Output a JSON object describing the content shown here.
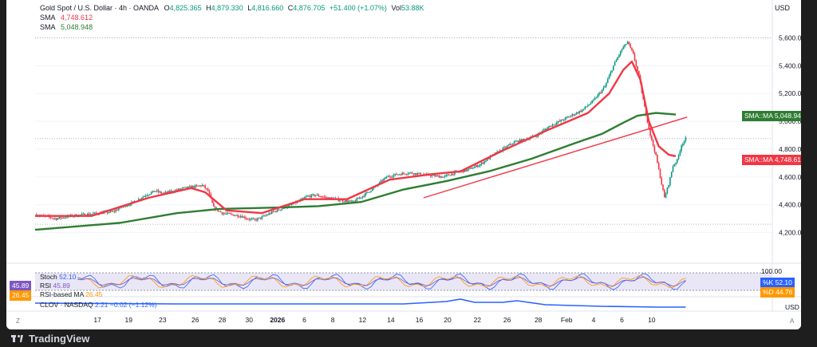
{
  "header": {
    "symbol": "Gold Spot / U.S. Dollar · 4h · OANDA",
    "o_label": "O",
    "o": "4,825.365",
    "h_label": "H",
    "h": "4,879.330",
    "l_label": "L",
    "l": "4,816.660",
    "c_label": "C",
    "c": "4,876.705",
    "change": "+51.400 (+1.07%)",
    "vol_label": "Vol",
    "vol": "53.88K",
    "sma1_label": "SMA",
    "sma1_value": "4,748.612",
    "sma2_label": "SMA",
    "sma2_value": "5,048.948",
    "currency": "USD"
  },
  "price_tags": {
    "sma_slow": {
      "label": "SMA::MA",
      "value": "5,048.948"
    },
    "sma_fast": {
      "label": "SMA::MA",
      "value": "4,748.612"
    }
  },
  "stoch_pane": {
    "title": "Stoch",
    "value": "52.10",
    "rsi_label": "RSI",
    "rsi_value": "45.89",
    "rsi_ma_label": "RSI-based MA",
    "rsi_ma_value": "26.45",
    "k_label": "%K",
    "k_value": "52.10",
    "d_label": "%D",
    "d_value": "44.76",
    "level": "100.00",
    "left_tag_1": "45.89",
    "left_tag_2": "26.45"
  },
  "clov_pane": {
    "label": "CLOV · NASDAQ",
    "value": "2.21",
    "change": "−0.02 (−1.12%)",
    "currency": "USD"
  },
  "time_axis": {
    "labels": [
      "17",
      "19",
      "23",
      "26",
      "28",
      "30",
      "2026",
      "6",
      "8",
      "12",
      "14",
      "16",
      "20",
      "22",
      "26",
      "28",
      "Feb",
      "4",
      "6",
      "10"
    ],
    "z_button": "Z",
    "a_button": "A"
  },
  "brand": "TradingView",
  "colors": {
    "up": "#089981",
    "down": "#f23645",
    "sma_fast": "#f23645",
    "sma_slow": "#2e7d32",
    "stoch_k": "#2962ff",
    "stoch_d": "#ff9800",
    "rsi": "#7e57c2",
    "clov": "#2962ff"
  },
  "chart_data": {
    "type": "candlestick",
    "timeframe": "4h",
    "y_axis_ticks": [
      4200,
      4400,
      4600,
      4800,
      5000,
      5200,
      5400,
      5600
    ],
    "y_axis_tick_labels": [
      "4,200.000",
      "4,400.000",
      "4,600.000",
      "4,800.000",
      "5,000.000",
      "5,200.000",
      "5,400.000",
      "5,600.000"
    ],
    "ylim": [
      4060,
      5700
    ],
    "x_labels": [
      "17",
      "19",
      "23",
      "26",
      "28",
      "30",
      "2026",
      "6",
      "8",
      "12",
      "14",
      "16",
      "20",
      "22",
      "26",
      "28",
      "Feb",
      "4",
      "6",
      "10"
    ],
    "close_path": [
      [
        0,
        4330
      ],
      [
        8,
        4315
      ],
      [
        15,
        4300
      ],
      [
        25,
        4320
      ],
      [
        35,
        4330
      ],
      [
        45,
        4340
      ],
      [
        55,
        4350
      ],
      [
        60,
        4380
      ],
      [
        70,
        4420
      ],
      [
        78,
        4470
      ],
      [
        85,
        4500
      ],
      [
        90,
        4480
      ],
      [
        98,
        4500
      ],
      [
        105,
        4520
      ],
      [
        112,
        4530
      ],
      [
        118,
        4540
      ],
      [
        122,
        4500
      ],
      [
        126,
        4380
      ],
      [
        132,
        4340
      ],
      [
        138,
        4330
      ],
      [
        145,
        4320
      ],
      [
        150,
        4300
      ],
      [
        155,
        4290
      ],
      [
        160,
        4310
      ],
      [
        168,
        4350
      ],
      [
        176,
        4380
      ],
      [
        185,
        4420
      ],
      [
        192,
        4460
      ],
      [
        198,
        4470
      ],
      [
        206,
        4450
      ],
      [
        212,
        4440
      ],
      [
        218,
        4430
      ],
      [
        224,
        4420
      ],
      [
        232,
        4470
      ],
      [
        240,
        4530
      ],
      [
        248,
        4600
      ],
      [
        256,
        4620
      ],
      [
        264,
        4630
      ],
      [
        272,
        4620
      ],
      [
        280,
        4610
      ],
      [
        288,
        4600
      ],
      [
        296,
        4630
      ],
      [
        305,
        4650
      ],
      [
        314,
        4690
      ],
      [
        322,
        4750
      ],
      [
        330,
        4800
      ],
      [
        338,
        4850
      ],
      [
        346,
        4870
      ],
      [
        354,
        4900
      ],
      [
        362,
        4960
      ],
      [
        370,
        5000
      ],
      [
        378,
        5040
      ],
      [
        386,
        5080
      ],
      [
        394,
        5150
      ],
      [
        402,
        5250
      ],
      [
        408,
        5400
      ],
      [
        414,
        5520
      ],
      [
        418,
        5570
      ],
      [
        422,
        5480
      ],
      [
        426,
        5320
      ],
      [
        430,
        5100
      ],
      [
        434,
        4900
      ],
      [
        438,
        4750
      ],
      [
        441,
        4600
      ],
      [
        444,
        4450
      ],
      [
        447,
        4550
      ],
      [
        450,
        4680
      ],
      [
        453,
        4720
      ],
      [
        456,
        4830
      ],
      [
        459,
        4876
      ]
    ],
    "sma_fast": [
      [
        0,
        4320
      ],
      [
        40,
        4320
      ],
      [
        80,
        4450
      ],
      [
        110,
        4520
      ],
      [
        120,
        4490
      ],
      [
        135,
        4360
      ],
      [
        160,
        4340
      ],
      [
        190,
        4440
      ],
      [
        220,
        4440
      ],
      [
        250,
        4580
      ],
      [
        280,
        4620
      ],
      [
        300,
        4640
      ],
      [
        330,
        4790
      ],
      [
        360,
        4930
      ],
      [
        390,
        5060
      ],
      [
        405,
        5200
      ],
      [
        415,
        5370
      ],
      [
        421,
        5430
      ],
      [
        427,
        5300
      ],
      [
        433,
        5000
      ],
      [
        440,
        4820
      ],
      [
        447,
        4760
      ],
      [
        452,
        4749
      ]
    ],
    "sma_slow": [
      [
        0,
        4220
      ],
      [
        60,
        4270
      ],
      [
        100,
        4340
      ],
      [
        130,
        4370
      ],
      [
        170,
        4380
      ],
      [
        200,
        4390
      ],
      [
        230,
        4420
      ],
      [
        260,
        4510
      ],
      [
        290,
        4570
      ],
      [
        320,
        4640
      ],
      [
        350,
        4730
      ],
      [
        380,
        4840
      ],
      [
        400,
        4910
      ],
      [
        415,
        4990
      ],
      [
        425,
        5040
      ],
      [
        438,
        5060
      ],
      [
        452,
        5049
      ]
    ],
    "trendline": {
      "start": [
        274,
        4450
      ],
      "end": [
        460,
        5030
      ]
    },
    "indicators": {
      "stoch_k": 52.1,
      "stoch_d": 44.76,
      "rsi": 45.89,
      "rsi_ma": 26.45
    }
  }
}
